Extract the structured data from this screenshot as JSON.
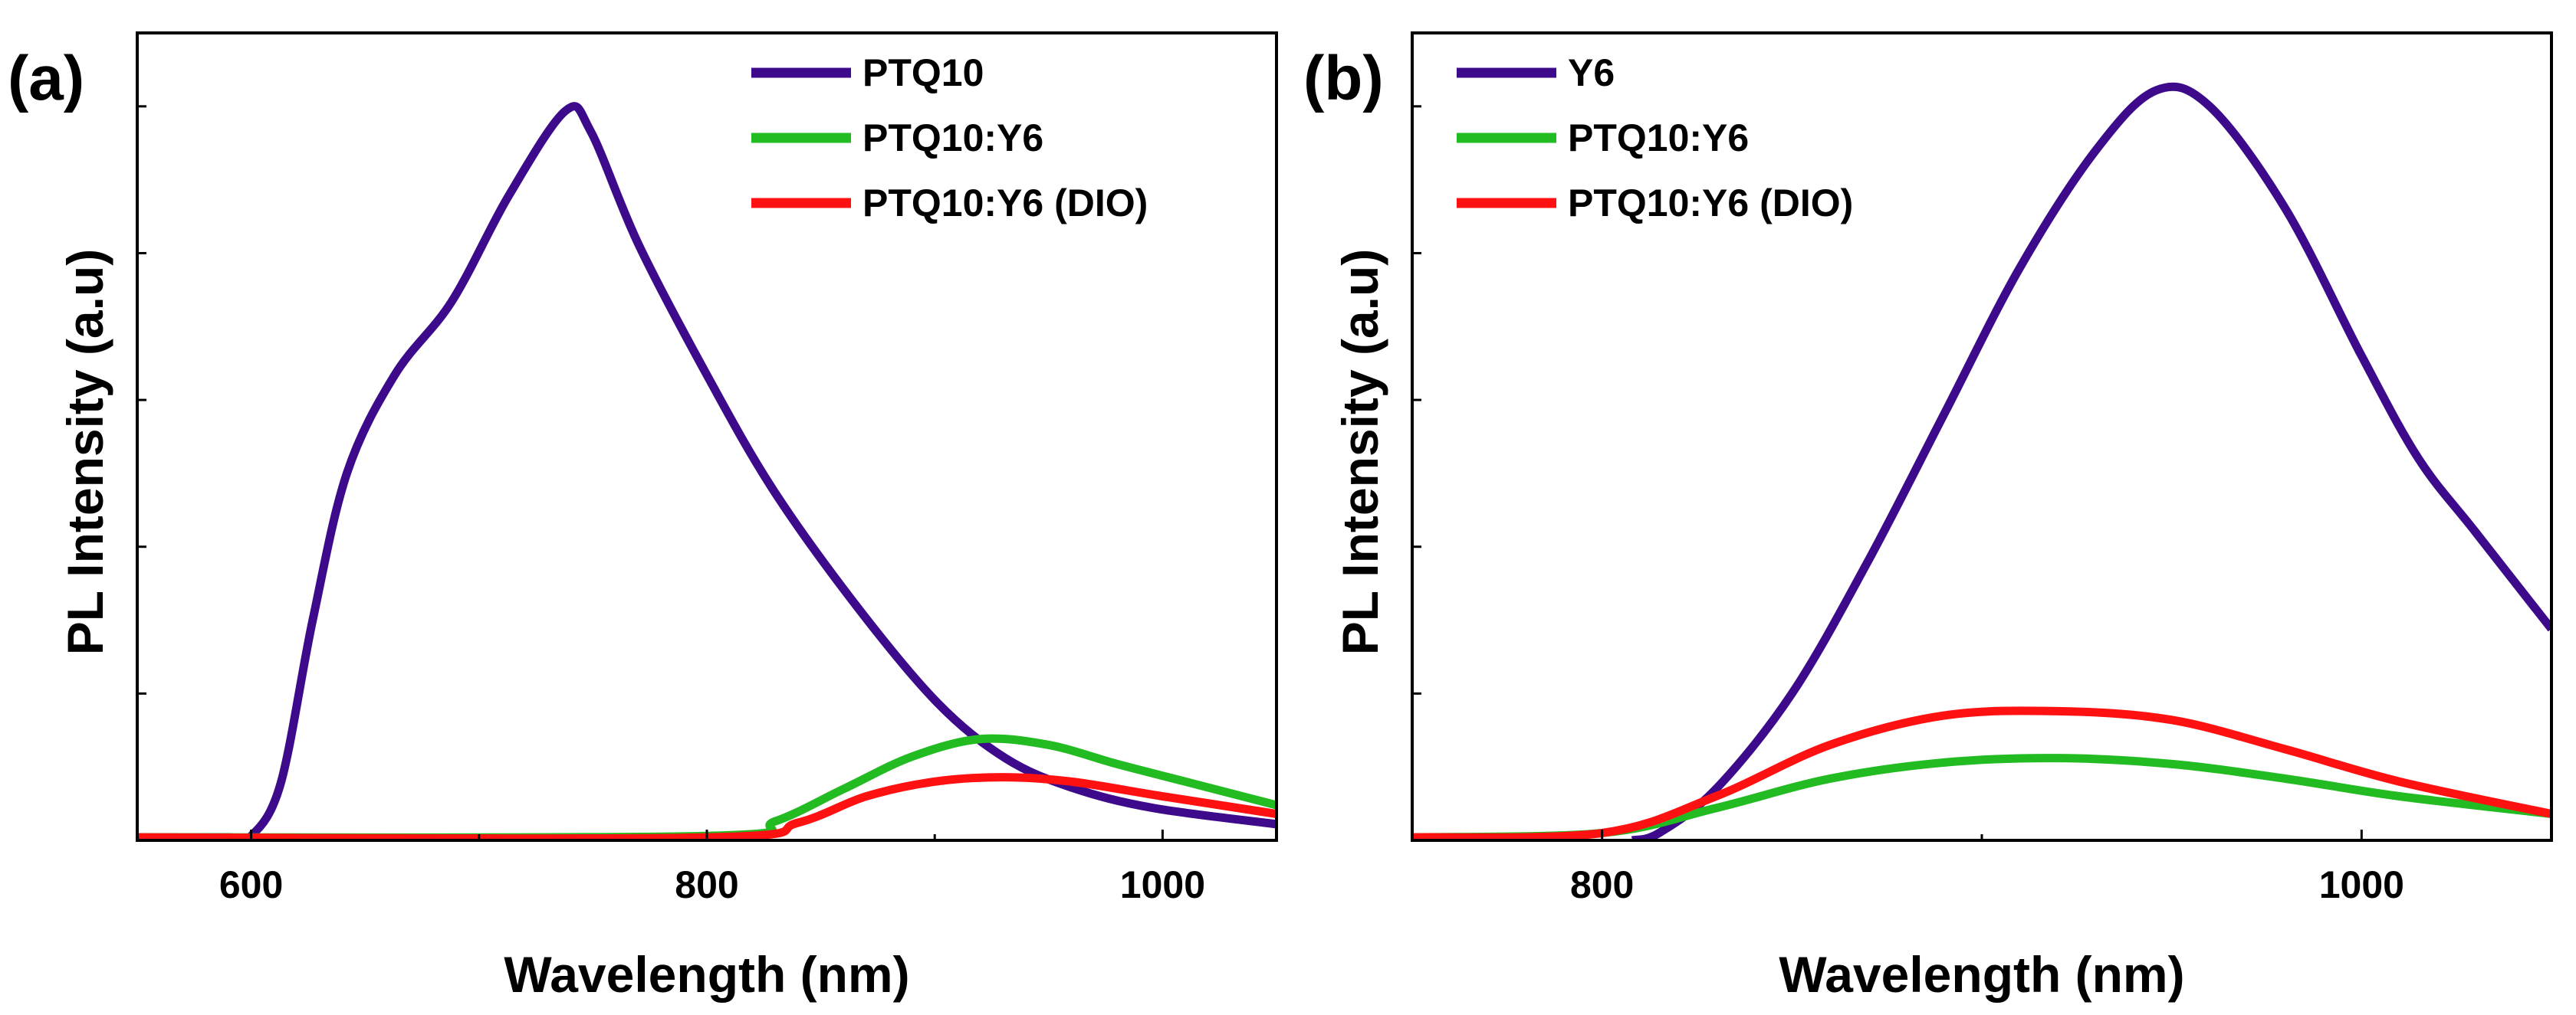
{
  "chart_data": [
    {
      "type": "line",
      "panel_label": "(a)",
      "xlabel": "Wavelength (nm)",
      "ylabel": "PL Intensity (a.u)",
      "xlim": [
        550,
        1050
      ],
      "ylim": [
        0,
        5.5
      ],
      "xticks": [
        600,
        800,
        1000
      ],
      "xminor": [
        700,
        900
      ],
      "yticks": [
        1,
        2,
        3,
        4,
        5
      ],
      "ytick_labels_shown": false,
      "grid": false,
      "legend_position": "top-right",
      "series": [
        {
          "name": "PTQ10",
          "color": "#3d0a8c",
          "x": [
            550,
            590,
            600,
            613,
            627,
            642,
            663,
            688,
            713,
            738,
            749,
            770,
            800,
            829,
            865,
            901,
            931,
            960,
            996,
            1050
          ],
          "y": [
            0.02,
            0.02,
            0.03,
            0.39,
            1.5,
            2.5,
            3.17,
            3.67,
            4.39,
            4.97,
            4.83,
            4.06,
            3.17,
            2.39,
            1.61,
            0.94,
            0.56,
            0.36,
            0.22,
            0.11
          ]
        },
        {
          "name": "PTQ10:Y6",
          "color": "#22bb22",
          "x": [
            550,
            800,
            830,
            860,
            890,
            920,
            950,
            980,
            1010,
            1050
          ],
          "y": [
            0.02,
            0.03,
            0.13,
            0.35,
            0.57,
            0.69,
            0.65,
            0.52,
            0.4,
            0.24
          ]
        },
        {
          "name": "PTQ10:Y6 (DIO)",
          "color": "#ff1111",
          "x": [
            550,
            800,
            840,
            870,
            900,
            930,
            960,
            1000,
            1050
          ],
          "y": [
            0.02,
            0.02,
            0.12,
            0.3,
            0.4,
            0.43,
            0.4,
            0.3,
            0.18
          ]
        }
      ]
    },
    {
      "type": "line",
      "panel_label": "(b)",
      "xlabel": "Wavelength (nm)",
      "ylabel": "PL Intensity (a.u)",
      "xlim": [
        750,
        1050
      ],
      "ylim": [
        0,
        5.5
      ],
      "xticks": [
        800,
        1000
      ],
      "xminor": [
        900
      ],
      "yticks": [
        1,
        2,
        3,
        4,
        5
      ],
      "ytick_labels_shown": false,
      "grid": false,
      "legend_position": "top-left",
      "series": [
        {
          "name": "Y6",
          "color": "#3d0a8c",
          "x": [
            808,
            815,
            830,
            850,
            870,
            890,
            910,
            930,
            946,
            960,
            980,
            1000,
            1015,
            1030,
            1050
          ],
          "y": [
            0,
            0.05,
            0.35,
            1.0,
            1.9,
            2.9,
            3.9,
            4.7,
            5.11,
            5.0,
            4.3,
            3.3,
            2.6,
            2.1,
            1.44
          ]
        },
        {
          "name": "PTQ10:Y6",
          "color": "#22bb22",
          "x": [
            750,
            800,
            830,
            860,
            890,
            920,
            950,
            980,
            1010,
            1050
          ],
          "y": [
            0.02,
            0.05,
            0.22,
            0.42,
            0.53,
            0.56,
            0.52,
            0.42,
            0.3,
            0.18
          ]
        },
        {
          "name": "PTQ10:Y6 (DIO)",
          "color": "#ff1111",
          "x": [
            750,
            800,
            830,
            860,
            890,
            920,
            950,
            980,
            1010,
            1050
          ],
          "y": [
            0.02,
            0.05,
            0.3,
            0.65,
            0.85,
            0.88,
            0.82,
            0.62,
            0.4,
            0.18
          ]
        }
      ]
    }
  ]
}
